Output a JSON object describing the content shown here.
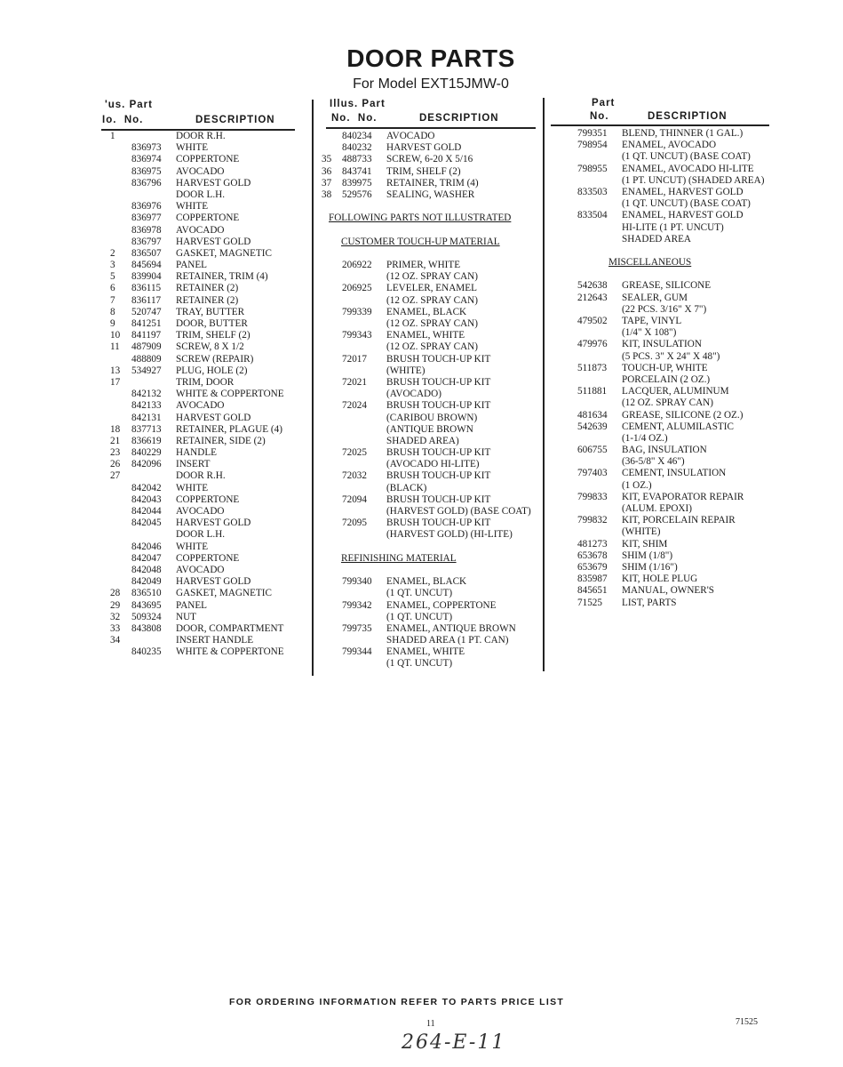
{
  "title": "DOOR PARTS",
  "subtitle": "For Model EXT15JMW-0",
  "columns": [
    {
      "head": {
        "illus_top": "'us.",
        "part_top": "Part",
        "illus_bottom": "Io.",
        "part_bottom": "No.",
        "desc": "DESCRIPTION"
      },
      "rows": [
        {
          "i": "1",
          "p": "",
          "d": "DOOR R.H."
        },
        {
          "i": "",
          "p": "836973",
          "d": "WHITE"
        },
        {
          "i": "",
          "p": "836974",
          "d": "COPPERTONE"
        },
        {
          "i": "",
          "p": "836975",
          "d": "AVOCADO"
        },
        {
          "i": "",
          "p": "836796",
          "d": "HARVEST GOLD"
        },
        {
          "i": "",
          "p": "",
          "d": "DOOR L.H."
        },
        {
          "i": "",
          "p": "836976",
          "d": "WHITE"
        },
        {
          "i": "",
          "p": "836977",
          "d": "COPPERTONE"
        },
        {
          "i": "",
          "p": "836978",
          "d": "AVOCADO"
        },
        {
          "i": "",
          "p": "836797",
          "d": "HARVEST GOLD"
        },
        {
          "i": "2",
          "p": "836507",
          "d": "GASKET, MAGNETIC"
        },
        {
          "i": "3",
          "p": "845694",
          "d": "PANEL"
        },
        {
          "i": "5",
          "p": "839904",
          "d": "RETAINER, TRIM (4)"
        },
        {
          "i": "6",
          "p": "836115",
          "d": "RETAINER (2)"
        },
        {
          "i": "7",
          "p": "836117",
          "d": "RETAINER (2)"
        },
        {
          "i": "8",
          "p": "520747",
          "d": "TRAY, BUTTER"
        },
        {
          "i": "9",
          "p": "841251",
          "d": "DOOR, BUTTER"
        },
        {
          "i": "10",
          "p": "841197",
          "d": "TRIM, SHELF (2)"
        },
        {
          "i": "11",
          "p": "487909",
          "d": "SCREW, 8 x 1/2"
        },
        {
          "i": "",
          "p": "488809",
          "d": "SCREW (REPAIR)"
        },
        {
          "i": "13",
          "p": "534927",
          "d": "PLUG, HOLE (2)"
        },
        {
          "i": "17",
          "p": "",
          "d": "TRIM, DOOR"
        },
        {
          "i": "",
          "p": "842132",
          "d": "WHITE & COPPERTONE"
        },
        {
          "i": "",
          "p": "842133",
          "d": "AVOCADO"
        },
        {
          "i": "",
          "p": "842131",
          "d": "HARVEST GOLD"
        },
        {
          "i": "18",
          "p": "837713",
          "d": "RETAINER, PLAGUE (4)"
        },
        {
          "i": "21",
          "p": "836619",
          "d": "RETAINER, SIDE (2)"
        },
        {
          "i": "23",
          "p": "840229",
          "d": "HANDLE"
        },
        {
          "i": "26",
          "p": "842096",
          "d": "INSERT"
        },
        {
          "i": "27",
          "p": "",
          "d": "DOOR R.H."
        },
        {
          "i": "",
          "p": "842042",
          "d": "WHITE"
        },
        {
          "i": "",
          "p": "842043",
          "d": "COPPERTONE"
        },
        {
          "i": "",
          "p": "842044",
          "d": "AVOCADO"
        },
        {
          "i": "",
          "p": "842045",
          "d": "HARVEST GOLD"
        },
        {
          "i": "",
          "p": "",
          "d": "DOOR L.H."
        },
        {
          "i": "",
          "p": "842046",
          "d": "WHITE"
        },
        {
          "i": "",
          "p": "842047",
          "d": "COPPERTONE"
        },
        {
          "i": "",
          "p": "842048",
          "d": "AVOCADO"
        },
        {
          "i": "",
          "p": "842049",
          "d": "HARVEST GOLD"
        },
        {
          "i": "28",
          "p": "836510",
          "d": "GASKET, MAGNETIC"
        },
        {
          "i": "29",
          "p": "843695",
          "d": "PANEL"
        },
        {
          "i": "32",
          "p": "509324",
          "d": "NUT"
        },
        {
          "i": "33",
          "p": "843808",
          "d": "DOOR, COMPARTMENT"
        },
        {
          "i": "34",
          "p": "",
          "d": "INSERT HANDLE"
        },
        {
          "i": "",
          "p": "840235",
          "d": "WHITE & COPPERTONE"
        }
      ]
    },
    {
      "head": {
        "illus_top": "Illus.",
        "part_top": "Part",
        "illus_bottom": "No.",
        "part_bottom": "No.",
        "desc": "DESCRIPTION"
      },
      "rows": [
        {
          "i": "",
          "p": "840234",
          "d": "AVOCADO"
        },
        {
          "i": "",
          "p": "840232",
          "d": "HARVEST GOLD"
        },
        {
          "i": "35",
          "p": "488733",
          "d": "SCREW, 6-20 x 5/16"
        },
        {
          "i": "36",
          "p": "843741",
          "d": "TRIM, SHELF (2)"
        },
        {
          "i": "37",
          "p": "839975",
          "d": "RETAINER, TRIM (4)"
        },
        {
          "i": "38",
          "p": "529576",
          "d": "SEALING, WASHER"
        },
        {
          "h": "FOLLOWING PARTS NOT ILLUSTRATED",
          "indent": 0
        },
        {
          "h": "CUSTOMER TOUCH-UP MATERIAL",
          "indent": 1
        },
        {
          "i": "",
          "p": "206922",
          "d": "PRIMER, WHITE"
        },
        {
          "i": "",
          "p": "",
          "d": "(12 OZ. SPRAY CAN)"
        },
        {
          "i": "",
          "p": "206925",
          "d": "LEVELER, ENAMEL"
        },
        {
          "i": "",
          "p": "",
          "d": "(12 OZ. SPRAY CAN)"
        },
        {
          "i": "",
          "p": "799339",
          "d": "ENAMEL, BLACK"
        },
        {
          "i": "",
          "p": "",
          "d": "(12 OZ. SPRAY CAN)"
        },
        {
          "i": "",
          "p": "799343",
          "d": "ENAMEL, WHITE"
        },
        {
          "i": "",
          "p": "",
          "d": "(12 OZ. SPRAY CAN)"
        },
        {
          "i": "",
          "p": "72017",
          "d": "BRUSH TOUCH-UP KIT"
        },
        {
          "i": "",
          "p": "",
          "d": "(WHITE)"
        },
        {
          "i": "",
          "p": "72021",
          "d": "BRUSH TOUCH-UP KIT"
        },
        {
          "i": "",
          "p": "",
          "d": "(AVOCADO)"
        },
        {
          "i": "",
          "p": "72024",
          "d": "BRUSH TOUCH-UP KIT"
        },
        {
          "i": "",
          "p": "",
          "d": "(CARIBOU BROWN)"
        },
        {
          "i": "",
          "p": "",
          "d": "(ANTIQUE BROWN"
        },
        {
          "i": "",
          "p": "",
          "d": "SHADED AREA)"
        },
        {
          "i": "",
          "p": "72025",
          "d": "BRUSH TOUCH-UP KIT"
        },
        {
          "i": "",
          "p": "",
          "d": "(AVOCADO HI-LITE)"
        },
        {
          "i": "",
          "p": "72032",
          "d": "BRUSH TOUCH-UP KIT"
        },
        {
          "i": "",
          "p": "",
          "d": "(BLACK)"
        },
        {
          "i": "",
          "p": "72094",
          "d": "BRUSH TOUCH-UP KIT"
        },
        {
          "i": "",
          "p": "",
          "d": "(HARVEST GOLD) (BASE COAT)"
        },
        {
          "i": "",
          "p": "72095",
          "d": "BRUSH TOUCH-UP KIT"
        },
        {
          "i": "",
          "p": "",
          "d": "(HARVEST GOLD) (HI-LITE)"
        },
        {
          "h": "REFINISHING MATERIAL",
          "indent": 1
        },
        {
          "i": "",
          "p": "799340",
          "d": "ENAMEL, BLACK"
        },
        {
          "i": "",
          "p": "",
          "d": "(1 QT. UNCUT)"
        },
        {
          "i": "",
          "p": "799342",
          "d": "ENAMEL, COPPERTONE"
        },
        {
          "i": "",
          "p": "",
          "d": "(1 QT. UNCUT)"
        },
        {
          "i": "",
          "p": "799735",
          "d": "ENAMEL, ANTIQUE BROWN"
        },
        {
          "i": "",
          "p": "",
          "d": "SHADED AREA (1 PT. CAN)"
        },
        {
          "i": "",
          "p": "799344",
          "d": "ENAMEL, WHITE"
        },
        {
          "i": "",
          "p": "",
          "d": "(1 QT. UNCUT)"
        }
      ]
    },
    {
      "head": {
        "illus_top": "",
        "part_top": "Part",
        "illus_bottom": "",
        "part_bottom": "No.",
        "desc": "DESCRIPTION"
      },
      "rows": [
        {
          "i": "",
          "p": "799351",
          "d": "BLEND, THINNER (1 GAL.)"
        },
        {
          "i": "",
          "p": "798954",
          "d": "ENAMEL, AVOCADO"
        },
        {
          "i": "",
          "p": "",
          "d": "(1 QT. UNCUT) (BASE COAT)"
        },
        {
          "i": "",
          "p": "798955",
          "d": "ENAMEL, AVOCADO HI-LITE"
        },
        {
          "i": "",
          "p": "",
          "d": "(1 PT. UNCUT) (SHADED AREA)"
        },
        {
          "i": "",
          "p": "833503",
          "d": "ENAMEL, HARVEST GOLD"
        },
        {
          "i": "",
          "p": "",
          "d": "(1 QT. UNCUT) (BASE COAT)"
        },
        {
          "i": "",
          "p": "833504",
          "d": "ENAMEL, HARVEST GOLD"
        },
        {
          "i": "",
          "p": "",
          "d": "HI-LITE (1 PT. UNCUT)"
        },
        {
          "i": "",
          "p": "",
          "d": "SHADED AREA"
        },
        {
          "h": "MISCELLANEOUS",
          "indent": 2
        },
        {
          "i": "",
          "p": "542638",
          "d": "GREASE, SILICONE"
        },
        {
          "i": "",
          "p": "212643",
          "d": "SEALER, GUM"
        },
        {
          "i": "",
          "p": "",
          "d": "(22 PCS. 3/16\" x 7\")"
        },
        {
          "i": "",
          "p": "479502",
          "d": "TAPE, VINYL"
        },
        {
          "i": "",
          "p": "",
          "d": "(1/4\" x 108\")"
        },
        {
          "i": "",
          "p": "479976",
          "d": "KIT, INSULATION"
        },
        {
          "i": "",
          "p": "",
          "d": "(5 PCS. 3\" x 24\" x 48\")"
        },
        {
          "i": "",
          "p": "511873",
          "d": "TOUCH-UP, WHITE"
        },
        {
          "i": "",
          "p": "",
          "d": "PORCELAIN (2 OZ.)"
        },
        {
          "i": "",
          "p": "511881",
          "d": "LACQUER, ALUMINUM"
        },
        {
          "i": "",
          "p": "",
          "d": "(12 OZ. SPRAY CAN)"
        },
        {
          "i": "",
          "p": "481634",
          "d": "GREASE, SILICONE (2 OZ.)"
        },
        {
          "i": "",
          "p": "542639",
          "d": "CEMENT, ALUMILASTIC"
        },
        {
          "i": "",
          "p": "",
          "d": "(1-1/4 OZ.)"
        },
        {
          "i": "",
          "p": "606755",
          "d": "BAG, INSULATION"
        },
        {
          "i": "",
          "p": "",
          "d": "(36-5/8\" x 46\")"
        },
        {
          "i": "",
          "p": "797403",
          "d": "CEMENT, INSULATION"
        },
        {
          "i": "",
          "p": "",
          "d": "(1 OZ.)"
        },
        {
          "i": "",
          "p": "799833",
          "d": "KIT, EVAPORATOR REPAIR"
        },
        {
          "i": "",
          "p": "",
          "d": "(ALUM. EPOXI)"
        },
        {
          "i": "",
          "p": "799832",
          "d": "KIT, PORCELAIN REPAIR"
        },
        {
          "i": "",
          "p": "",
          "d": "(WHITE)"
        },
        {
          "i": "",
          "p": "481273",
          "d": "KIT, SHIM"
        },
        {
          "i": "",
          "p": "653678",
          "d": "SHIM (1/8\")"
        },
        {
          "i": "",
          "p": "653679",
          "d": "SHIM (1/16\")"
        },
        {
          "i": "",
          "p": "835987",
          "d": "KIT, HOLE PLUG"
        },
        {
          "i": "",
          "p": "845651",
          "d": "MANUAL, OWNER'S"
        },
        {
          "i": "",
          "p": "71525",
          "d": "LIST, PARTS"
        }
      ]
    }
  ],
  "footer": {
    "ordering_note": "FOR ORDERING INFORMATION REFER TO PARTS PRICE LIST",
    "page_number": "11",
    "list_number": "71525",
    "handwritten_note": "264-E-11"
  }
}
